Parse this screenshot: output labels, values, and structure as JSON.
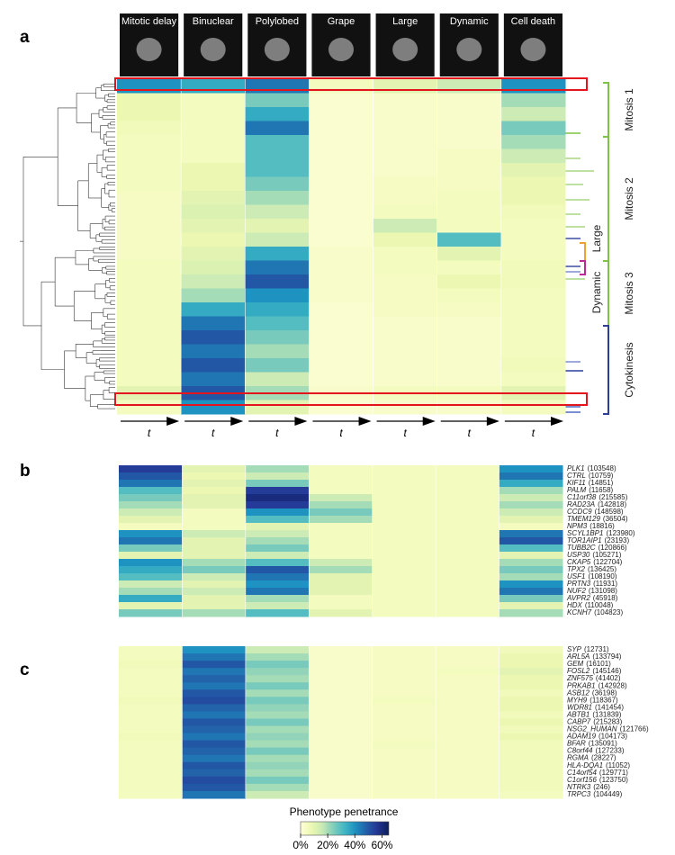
{
  "panel_a": {
    "label": "a",
    "phenotypes": [
      "Mitotic delay",
      "Binuclear",
      "Polylobed",
      "Grape",
      "Large",
      "Dynamic",
      "Cell death"
    ],
    "time_label": "t",
    "clusters": [
      "Mitosis 1",
      "Mitosis 2",
      "Large",
      "Dynamic",
      "Mitosis 3",
      "Cytokinesis"
    ],
    "heatmap": [
      [
        40,
        35,
        45,
        5,
        10,
        15,
        40
      ],
      [
        8,
        5,
        25,
        2,
        3,
        3,
        20
      ],
      [
        8,
        5,
        35,
        2,
        3,
        3,
        15
      ],
      [
        6,
        5,
        45,
        2,
        3,
        3,
        25
      ],
      [
        5,
        5,
        30,
        2,
        3,
        3,
        20
      ],
      [
        5,
        5,
        30,
        2,
        3,
        4,
        15
      ],
      [
        5,
        8,
        30,
        2,
        3,
        4,
        10
      ],
      [
        5,
        8,
        25,
        2,
        4,
        4,
        8
      ],
      [
        4,
        10,
        20,
        2,
        4,
        5,
        8
      ],
      [
        4,
        12,
        15,
        2,
        5,
        5,
        6
      ],
      [
        4,
        10,
        10,
        2,
        15,
        5,
        5
      ],
      [
        4,
        8,
        15,
        2,
        8,
        30,
        5
      ],
      [
        4,
        10,
        35,
        3,
        5,
        10,
        5
      ],
      [
        5,
        12,
        45,
        3,
        5,
        5,
        6
      ],
      [
        5,
        15,
        50,
        3,
        4,
        8,
        6
      ],
      [
        5,
        20,
        40,
        3,
        4,
        5,
        5
      ],
      [
        5,
        35,
        35,
        2,
        4,
        4,
        5
      ],
      [
        5,
        45,
        30,
        2,
        3,
        3,
        5
      ],
      [
        5,
        50,
        25,
        2,
        3,
        3,
        5
      ],
      [
        5,
        45,
        20,
        2,
        3,
        3,
        5
      ],
      [
        5,
        50,
        25,
        2,
        3,
        3,
        6
      ],
      [
        5,
        45,
        15,
        2,
        3,
        3,
        5
      ],
      [
        10,
        50,
        20,
        3,
        5,
        5,
        10
      ],
      [
        5,
        40,
        10,
        2,
        3,
        3,
        5
      ]
    ]
  },
  "panel_b": {
    "label": "b",
    "genes": [
      {
        "name": "PLK1",
        "id": "(103548)"
      },
      {
        "name": "CTRL",
        "id": "(10759)"
      },
      {
        "name": "KIF11",
        "id": "(14851)"
      },
      {
        "name": "PALM",
        "id": "(11658)"
      },
      {
        "name": "C11orf38",
        "id": "(215585)"
      },
      {
        "name": "RAD23A",
        "id": "(142818)"
      },
      {
        "name": "CCDC9",
        "id": "(148598)"
      },
      {
        "name": "TMEM129",
        "id": "(36504)"
      },
      {
        "name": "NPM3",
        "id": "(18816)"
      },
      {
        "name": "SCYL1BP1",
        "id": "(123980)"
      },
      {
        "name": "TOR1AIP1",
        "id": "(23193)",
        "highlight": true
      },
      {
        "name": "TUBB2C",
        "id": "(120866)"
      },
      {
        "name": "USP30",
        "id": "(105271)"
      },
      {
        "name": "CKAP5",
        "id": "(122704)"
      },
      {
        "name": "TPX2",
        "id": "(136425)"
      },
      {
        "name": "USF1",
        "id": "(108190)"
      },
      {
        "name": "PRTN3",
        "id": "(11931)"
      },
      {
        "name": "NUF2",
        "id": "(131098)"
      },
      {
        "name": "AVPR2",
        "id": "(45918)"
      },
      {
        "name": "HDX",
        "id": "(110048)"
      },
      {
        "name": "KCNH7",
        "id": "(104823)"
      }
    ],
    "heatmap": [
      [
        55,
        10,
        20,
        5,
        5,
        5,
        40
      ],
      [
        50,
        8,
        15,
        5,
        5,
        5,
        45
      ],
      [
        45,
        10,
        25,
        5,
        5,
        5,
        35
      ],
      [
        30,
        8,
        55,
        5,
        5,
        5,
        20
      ],
      [
        25,
        10,
        60,
        15,
        5,
        5,
        15
      ],
      [
        20,
        10,
        55,
        20,
        5,
        5,
        20
      ],
      [
        15,
        5,
        40,
        25,
        5,
        5,
        15
      ],
      [
        10,
        5,
        30,
        20,
        5,
        5,
        10
      ],
      [
        5,
        5,
        10,
        5,
        5,
        5,
        5
      ],
      [
        40,
        15,
        15,
        5,
        5,
        5,
        45
      ],
      [
        45,
        10,
        20,
        5,
        5,
        5,
        50
      ],
      [
        25,
        10,
        25,
        5,
        5,
        5,
        30
      ],
      [
        10,
        10,
        15,
        5,
        5,
        5,
        10
      ],
      [
        40,
        20,
        30,
        15,
        5,
        5,
        20
      ],
      [
        35,
        25,
        50,
        20,
        5,
        5,
        25
      ],
      [
        30,
        15,
        45,
        10,
        5,
        5,
        20
      ],
      [
        15,
        10,
        40,
        10,
        5,
        5,
        40
      ],
      [
        20,
        15,
        45,
        10,
        5,
        5,
        45
      ],
      [
        35,
        10,
        20,
        5,
        5,
        5,
        25
      ],
      [
        10,
        10,
        15,
        5,
        5,
        5,
        10
      ],
      [
        25,
        20,
        30,
        10,
        5,
        5,
        20
      ]
    ]
  },
  "panel_c": {
    "label": "c",
    "genes": [
      {
        "name": "SYP",
        "id": "(12731)"
      },
      {
        "name": "ARL5A",
        "id": "(133794)"
      },
      {
        "name": "GEM",
        "id": "(16101)"
      },
      {
        "name": "FOSL2",
        "id": "(145146)"
      },
      {
        "name": "ZNF575",
        "id": "(41402)"
      },
      {
        "name": "PRKAB1",
        "id": "(142928)"
      },
      {
        "name": "ASB12",
        "id": "(36198)"
      },
      {
        "name": "MYH9",
        "id": "(118367)"
      },
      {
        "name": "WDR81",
        "id": "(141454)"
      },
      {
        "name": "ABTB1",
        "id": "(131839)"
      },
      {
        "name": "CABP7",
        "id": "(215283)",
        "highlight": true
      },
      {
        "name": "NSG2_HUMAN",
        "id": "(121766)"
      },
      {
        "name": "ADAM19",
        "id": "(104173)"
      },
      {
        "name": "BFAR",
        "id": "(135091)"
      },
      {
        "name": "C8orf44",
        "id": "(127233)"
      },
      {
        "name": "RGMA",
        "id": "(28227)"
      },
      {
        "name": "HLA-DQA1",
        "id": "(11052)"
      },
      {
        "name": "C14orf54",
        "id": "(129771)"
      },
      {
        "name": "C1orf156",
        "id": "(123750)"
      },
      {
        "name": "NTRK3",
        "id": "(246)"
      },
      {
        "name": "TRPC3",
        "id": "(104449)"
      }
    ],
    "heatmap": [
      [
        5,
        40,
        15,
        3,
        4,
        4,
        6
      ],
      [
        5,
        45,
        20,
        3,
        4,
        4,
        8
      ],
      [
        6,
        50,
        25,
        3,
        4,
        4,
        8
      ],
      [
        5,
        45,
        22,
        3,
        4,
        5,
        10
      ],
      [
        5,
        48,
        20,
        3,
        4,
        4,
        8
      ],
      [
        5,
        45,
        25,
        3,
        4,
        4,
        8
      ],
      [
        5,
        50,
        20,
        3,
        4,
        4,
        6
      ],
      [
        6,
        52,
        25,
        3,
        5,
        4,
        8
      ],
      [
        5,
        48,
        22,
        3,
        4,
        4,
        8
      ],
      [
        5,
        45,
        20,
        3,
        4,
        4,
        6
      ],
      [
        5,
        50,
        25,
        3,
        4,
        4,
        8
      ],
      [
        5,
        48,
        20,
        3,
        4,
        4,
        6
      ],
      [
        6,
        45,
        22,
        3,
        4,
        4,
        8
      ],
      [
        5,
        50,
        20,
        3,
        5,
        4,
        6
      ],
      [
        5,
        48,
        25,
        3,
        4,
        4,
        6
      ],
      [
        5,
        45,
        20,
        3,
        4,
        4,
        6
      ],
      [
        5,
        50,
        22,
        3,
        4,
        4,
        6
      ],
      [
        5,
        48,
        20,
        3,
        4,
        4,
        6
      ],
      [
        5,
        52,
        25,
        3,
        4,
        4,
        6
      ],
      [
        5,
        50,
        20,
        3,
        4,
        4,
        6
      ],
      [
        5,
        45,
        15,
        3,
        4,
        4,
        5
      ]
    ]
  },
  "colorbar": {
    "title": "Phenotype penetrance",
    "lim": [
      0,
      65
    ],
    "ticks": [
      {
        "value": 0,
        "label": "0%"
      },
      {
        "value": 20,
        "label": "20%"
      },
      {
        "value": 40,
        "label": "40%"
      },
      {
        "value": 60,
        "label": "60%"
      }
    ]
  }
}
